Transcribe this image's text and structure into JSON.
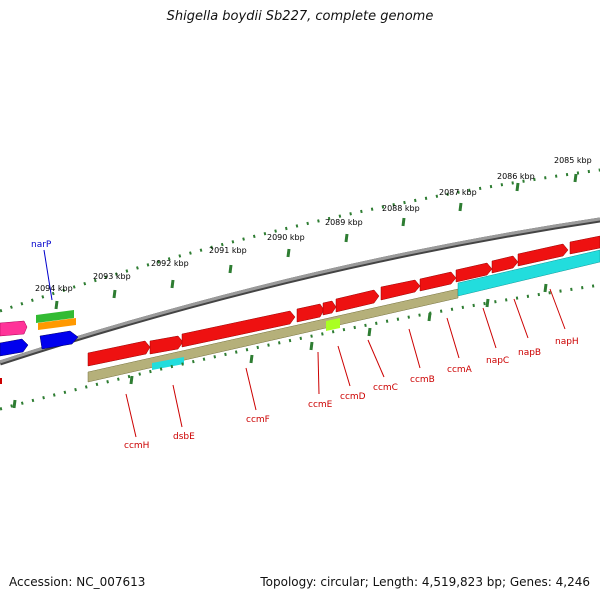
{
  "title": "Shigella boydii Sb227, complete genome",
  "footer": {
    "accession": "Accession: NC_007613",
    "summary": "Topology: circular; Length: 4,519,823 bp; Genes: 4,246"
  },
  "colors": {
    "backbone": "#8c8c8c",
    "tick": "#2e7d32",
    "gene_fwd": "#ee1111",
    "cds_olive": "#b5b07a",
    "cds_cyan": "#22dddd",
    "cds_lime": "#aaff22",
    "label_red": "#cc0000",
    "label_blue": "#0000cc",
    "pink": "#ff3399",
    "blue": "#0000ee",
    "green": "#33bb33",
    "orange": "#ff9900"
  },
  "scale_labels": [
    "2085 kbp",
    "2086 kbp",
    "2087 kbp",
    "2088 kbp",
    "2089 kbp",
    "2090 kbp",
    "2091 kbp",
    "2092 kbp",
    "2093 kbp",
    "2094 kbp"
  ],
  "gene_labels": {
    "narP": "narP",
    "ccmH": "ccmH",
    "dsbE": "dsbE",
    "ccmF": "ccmF",
    "ccmE": "ccmE",
    "ccmD": "ccmD",
    "ccmC": "ccmC",
    "ccmB": "ccmB",
    "ccmA": "ccmA",
    "napC": "napC",
    "napB": "napB",
    "napH": "napH"
  }
}
